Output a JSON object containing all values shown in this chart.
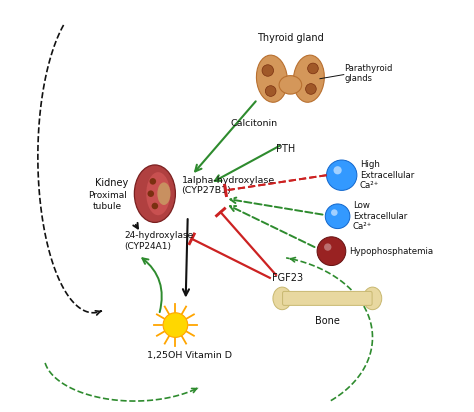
{
  "bg_color": "#ffffff",
  "figsize": [
    4.74,
    4.12
  ],
  "dpi": 100,
  "labels": {
    "thyroid_gland": "Thyroid gland",
    "calcitonin": "Calcitonin",
    "parathyroid": "Parathyroid\nglands",
    "pth": "PTH",
    "kidney": "Kidney",
    "proximal_tubule": "Proximal\ntubule",
    "1alpha": "1alpha-hydroxylase\n(CYP27B1)",
    "24hydroxy": "24-hydroxylase\n(CYP24A1)",
    "vitd": "1,25OH Vitamin D",
    "high_ca": "High\nExtracellular\nCa²⁺",
    "low_ca": "Low\nExtracellular\nCa²⁺",
    "hypophos": "Hypophosphatemia",
    "fgf23": "FGF23",
    "bone": "Bone"
  },
  "colors": {
    "green": "#2e8b2e",
    "red": "#cc2222",
    "black": "#111111",
    "thyroid_fill": "#d4975a",
    "thyroid_edge": "#b87030",
    "thyroid_dot": "#a05828",
    "kidney_outer": "#b04040",
    "kidney_inner": "#c86060",
    "kidney_detail": "#8b3030",
    "kidney_pelvis": "#c8903c",
    "bone_fill": "#e8d8a0",
    "bone_edge": "#c8b870",
    "sun_yellow": "#FFD700",
    "sun_orange": "#FFA500",
    "blue_ball": "#3399ff",
    "blue_ball_edge": "#1166cc",
    "dark_red_ball": "#992222",
    "dark_red_edge": "#661111"
  }
}
